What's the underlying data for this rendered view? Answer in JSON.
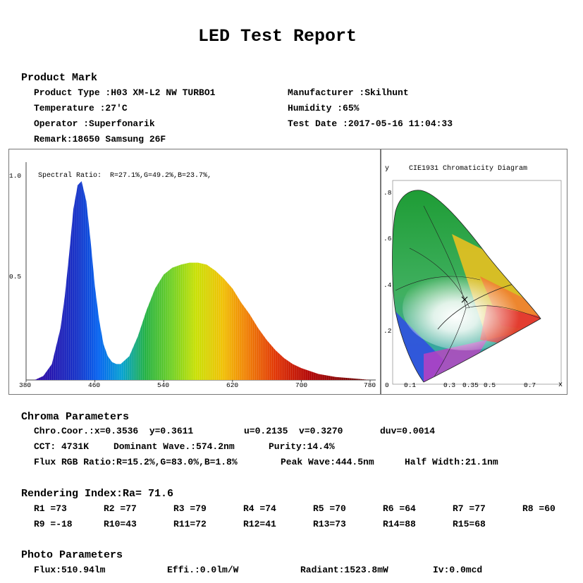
{
  "title": "LED Test Report",
  "product": {
    "heading": "Product Mark",
    "type": "Product Type :H03 XM-L2 NW TURBO1",
    "manufacturer": "Manufacturer :Skilhunt",
    "temperature": "Temperature :27'C",
    "humidity": "Humidity :65%",
    "operator": "Operator :Superfonarik",
    "test_date": "Test Date :2017-05-16 11:04:33",
    "remark": "Remark:18650 Samsung 26F"
  },
  "spectrum": {
    "ratio_text": "Spectral Ratio:  R=27.1%,G=49.2%,B=23.7%,",
    "y_ticks": [
      "1.0",
      "0.5"
    ],
    "x_ticks": [
      "380",
      "460",
      "540",
      "620",
      "700",
      "780"
    ]
  },
  "cie": {
    "title": "CIE1931 Chromaticity Diagram",
    "y_axis": "y",
    "x_axis": "x",
    "y_ticks": [
      ".8",
      ".6",
      ".4",
      ".2",
      "0"
    ],
    "x_ticks": [
      "0.1",
      "0.3",
      "0.35",
      "0.5",
      "0.7"
    ],
    "point": {
      "x": 0.3536,
      "y": 0.3611
    }
  },
  "chroma": {
    "heading": "Chroma Parameters",
    "coord": "Chro.Coor.:x=0.3536  y=0.3611",
    "uv": "u=0.2135  v=0.3270",
    "duv": "duv=0.0014",
    "cct": "CCT: 4731K",
    "dominant": "Dominant Wave.:574.2nm",
    "purity": "Purity:14.4%",
    "flux_ratio": "Flux RGB Ratio:R=15.2%,G=83.0%,B=1.8%",
    "peak": "Peak Wave:444.5nm",
    "half_width": "Half Width:21.1nm"
  },
  "rendering": {
    "heading": "Rendering Index:Ra= 71.6",
    "row1": [
      "R1 =73",
      "R2 =77",
      "R3 =79",
      "R4 =74",
      "R5 =70",
      "R6 =64",
      "R7 =77",
      "R8 =60"
    ],
    "row2": [
      "R9 =-18",
      "R10=43",
      "R11=72",
      "R12=41",
      "R13=73",
      "R14=88",
      "R15=68"
    ]
  },
  "photo": {
    "heading": "Photo Parameters",
    "flux": "Flux:510.94lm",
    "effi": "Effi.:0.0lm/W",
    "radiant": "Radiant:1523.8mW",
    "iv": "Iv:0.0mcd"
  },
  "chart_data": {
    "type": "area",
    "title": "Spectral Ratio:  R=27.1%,G=49.2%,B=23.7%,",
    "xlabel": "",
    "ylabel": "",
    "xlim": [
      380,
      780
    ],
    "ylim": [
      0,
      1.0
    ],
    "x_ticks": [
      380,
      460,
      540,
      620,
      700,
      780
    ],
    "y_ticks": [
      0.5,
      1.0
    ],
    "x": [
      390,
      400,
      410,
      420,
      425,
      430,
      435,
      440,
      444.5,
      450,
      455,
      460,
      465,
      470,
      475,
      480,
      485,
      490,
      500,
      510,
      520,
      530,
      540,
      550,
      560,
      570,
      580,
      590,
      600,
      610,
      620,
      630,
      640,
      650,
      660,
      670,
      680,
      690,
      700,
      720,
      740,
      760,
      780
    ],
    "values": [
      0.0,
      0.02,
      0.08,
      0.26,
      0.42,
      0.63,
      0.86,
      0.98,
      1.0,
      0.9,
      0.7,
      0.47,
      0.3,
      0.18,
      0.12,
      0.09,
      0.08,
      0.08,
      0.12,
      0.22,
      0.35,
      0.46,
      0.53,
      0.565,
      0.58,
      0.59,
      0.59,
      0.58,
      0.55,
      0.51,
      0.46,
      0.39,
      0.33,
      0.26,
      0.2,
      0.15,
      0.11,
      0.08,
      0.06,
      0.03,
      0.015,
      0.008,
      0.0
    ]
  }
}
